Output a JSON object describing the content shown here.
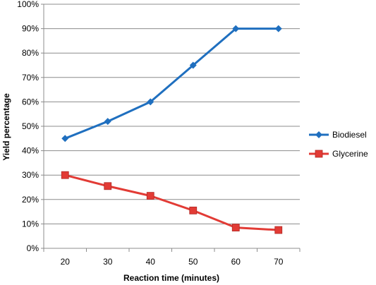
{
  "chart_data": {
    "type": "line",
    "title": "",
    "xlabel": "Reaction time (minutes)",
    "ylabel": "Yield percentage",
    "x": [
      20,
      30,
      40,
      50,
      60,
      70
    ],
    "x_tick_labels": [
      "20",
      "30",
      "40",
      "50",
      "60",
      "70"
    ],
    "ylim": [
      0,
      100
    ],
    "y_ticks": [
      0,
      10,
      20,
      30,
      40,
      50,
      60,
      70,
      80,
      90,
      100
    ],
    "y_tick_labels": [
      "0%",
      "10%",
      "20%",
      "30%",
      "40%",
      "50%",
      "60%",
      "70%",
      "80%",
      "90%",
      "100%"
    ],
    "grid": "horizontal",
    "legend_position": "right",
    "series": [
      {
        "name": "Biodiesel",
        "values": [
          45,
          52,
          60,
          75,
          90,
          90
        ],
        "color": "#1f6fbf",
        "marker": "diamond"
      },
      {
        "name": "Glycerine",
        "values": [
          30,
          25.5,
          21.5,
          15.5,
          8.5,
          7.5
        ],
        "color": "#e23b35",
        "marker": "square"
      }
    ]
  }
}
